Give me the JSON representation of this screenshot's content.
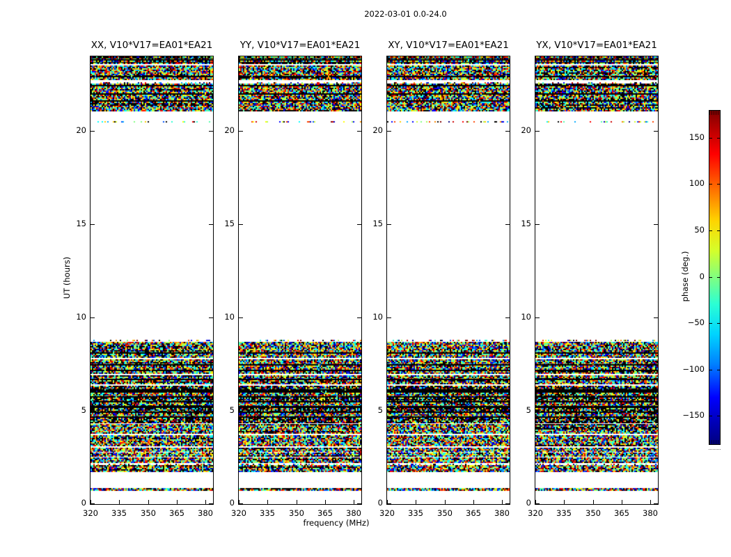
{
  "figure": {
    "title": "2022-03-01 0.0-24.0",
    "background": "#ffffff"
  },
  "chart_data": {
    "type": "heatmap",
    "title": "2022-03-01 0.0-24.0",
    "xlabel": "frequency (MHz)",
    "ylabel": "UT (hours)",
    "x_range": [
      320,
      384
    ],
    "y_range": [
      0,
      24
    ],
    "x_ticks": [
      320,
      335,
      350,
      365,
      380
    ],
    "y_ticks": [
      0,
      5,
      10,
      15,
      20
    ],
    "grid": false,
    "panels": [
      {
        "title": "XX, V10*V17=EA01*EA21"
      },
      {
        "title": "YY, V10*V17=EA01*EA21"
      },
      {
        "title": "XY, V10*V17=EA01*EA21"
      },
      {
        "title": "YX, V10*V17=EA01*EA21"
      }
    ],
    "colorbar": {
      "label": "phase (deg.)",
      "tick_labels": [
        "150",
        "100",
        "50",
        "0",
        "−50",
        "−100",
        "−150"
      ],
      "tick_values": [
        150,
        100,
        50,
        0,
        -50,
        -100,
        -150
      ],
      "range": [
        -180,
        180
      ],
      "colormap": "jet",
      "position": "right"
    },
    "value_description": "random phase noise between -180 and 180 deg in observed time ranges; blank (white) where no data; black rows are low/flagged phases",
    "time_bands": [
      [
        23.94,
        24.0,
        "noise"
      ],
      [
        23.89,
        23.94,
        "black"
      ],
      [
        23.84,
        23.89,
        "noise"
      ],
      [
        23.78,
        23.84,
        "black"
      ],
      [
        23.71,
        23.78,
        "noise"
      ],
      [
        23.65,
        23.71,
        "black"
      ],
      [
        23.58,
        23.65,
        "noise"
      ],
      [
        22.95,
        23.52,
        "noise"
      ],
      [
        22.88,
        22.95,
        "black"
      ],
      [
        22.76,
        22.88,
        "noise"
      ],
      [
        22.54,
        22.63,
        "sparse"
      ],
      [
        22.46,
        22.54,
        "noise"
      ],
      [
        22.39,
        22.46,
        "black"
      ],
      [
        22.02,
        22.39,
        "noise"
      ],
      [
        21.95,
        22.02,
        "black"
      ],
      [
        21.64,
        21.95,
        "noise"
      ],
      [
        21.57,
        21.64,
        "black"
      ],
      [
        21.08,
        21.57,
        "noise"
      ],
      [
        20.47,
        20.53,
        "sparse"
      ],
      [
        8.73,
        8.81,
        "sparse"
      ],
      [
        8.13,
        8.7,
        "noise"
      ],
      [
        8.05,
        8.13,
        "black"
      ],
      [
        7.83,
        8.05,
        "noise"
      ],
      [
        7.49,
        7.75,
        "noise"
      ],
      [
        7.42,
        7.49,
        "black"
      ],
      [
        7.19,
        7.42,
        "noise"
      ],
      [
        7.12,
        7.19,
        "black"
      ],
      [
        6.97,
        7.12,
        "noise"
      ],
      [
        6.71,
        6.9,
        "noise"
      ],
      [
        6.63,
        6.71,
        "black"
      ],
      [
        6.41,
        6.63,
        "noise"
      ],
      [
        6.15,
        6.34,
        "noise-dark"
      ],
      [
        5.96,
        6.15,
        "black"
      ],
      [
        5.78,
        5.96,
        "noise"
      ],
      [
        5.7,
        5.78,
        "black"
      ],
      [
        5.51,
        5.7,
        "noise-dark"
      ],
      [
        5.44,
        5.51,
        "black"
      ],
      [
        5.25,
        5.44,
        "noise"
      ],
      [
        5.14,
        5.25,
        "black"
      ],
      [
        4.95,
        5.14,
        "noise-dark"
      ],
      [
        4.88,
        4.95,
        "black"
      ],
      [
        4.69,
        4.88,
        "noise"
      ],
      [
        4.62,
        4.69,
        "black"
      ],
      [
        4.36,
        4.62,
        "noise-dark"
      ],
      [
        3.76,
        4.28,
        "noise"
      ],
      [
        3.09,
        3.69,
        "noise"
      ],
      [
        2.83,
        3.01,
        "noise"
      ],
      [
        2.75,
        2.83,
        "sparse"
      ],
      [
        2.57,
        2.75,
        "noise"
      ],
      [
        2.24,
        2.49,
        "noise"
      ],
      [
        2.09,
        2.16,
        "sparse"
      ],
      [
        1.75,
        2.09,
        "noise"
      ],
      [
        0.75,
        0.86,
        "noise"
      ]
    ],
    "noise_palette": [
      "#000080",
      "#0000cd",
      "#0000ff",
      "#0055ff",
      "#00aaff",
      "#00ffff",
      "#2bffd4",
      "#55ffaa",
      "#80ff80",
      "#aaff55",
      "#d4ff2b",
      "#ffff00",
      "#ffcc00",
      "#ff8800",
      "#ff4400",
      "#ff0000",
      "#cd0000",
      "#800000"
    ]
  }
}
